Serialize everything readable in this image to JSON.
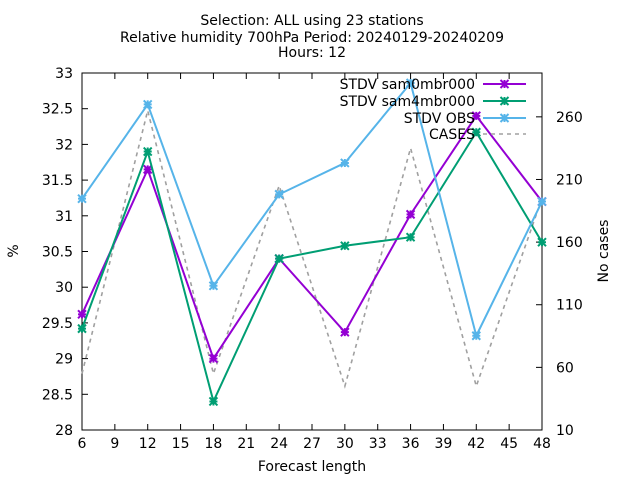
{
  "chart_data": {
    "type": "line",
    "title_lines": [
      "Selection: ALL using    23 stations",
      "Relative humidity 700hPa   Period: 20240129-20240209",
      "Hours: 12"
    ],
    "xlabel": "Forecast length",
    "ylabel": "%",
    "y2label": "No cases",
    "x": [
      6,
      12,
      18,
      24,
      30,
      36,
      42,
      48
    ],
    "xlim": [
      6,
      48
    ],
    "ylim": [
      28,
      33
    ],
    "y2lim": [
      10,
      295
    ],
    "xticks": [
      "6",
      "9",
      "12",
      "15",
      "18",
      "21",
      "24",
      "27",
      "30",
      "33",
      "36",
      "39",
      "42",
      "45",
      "48"
    ],
    "yticks": [
      "28",
      "28.5",
      "29",
      "29.5",
      "30",
      "30.5",
      "31",
      "31.5",
      "32",
      "32.5",
      "33"
    ],
    "y2ticks": [
      "10",
      "60",
      "110",
      "160",
      "210",
      "260"
    ],
    "legend_position": "top-right",
    "grid": false,
    "series": [
      {
        "name": "STDV sam0mbr000",
        "axis": "y1",
        "color": "#9400d3",
        "marker": "x",
        "dash": "",
        "values": [
          29.62,
          31.65,
          29.0,
          30.4,
          29.37,
          31.02,
          32.4,
          31.2
        ]
      },
      {
        "name": "STDV sam4mbr000",
        "axis": "y1",
        "color": "#009e73",
        "marker": "x",
        "dash": "",
        "values": [
          29.42,
          31.9,
          28.4,
          30.4,
          30.58,
          30.7,
          32.17,
          30.63
        ]
      },
      {
        "name": "STDV OBS",
        "axis": "y1",
        "color": "#56b4e9",
        "marker": "x",
        "dash": "",
        "values": [
          31.24,
          32.56,
          30.02,
          31.3,
          31.74,
          32.86,
          29.32,
          31.2
        ]
      },
      {
        "name": "CASES",
        "axis": "y2",
        "color": "#a0a0a0",
        "marker": "",
        "dash": "4,4",
        "values": [
          55,
          265,
          55,
          205,
          45,
          235,
          45,
          195
        ]
      }
    ]
  }
}
